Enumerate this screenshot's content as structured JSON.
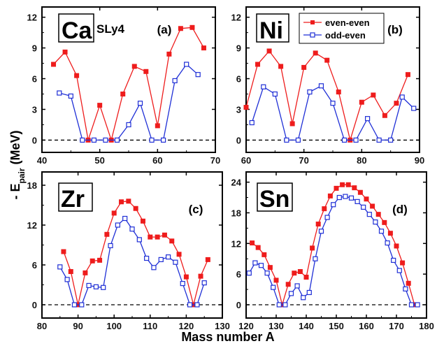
{
  "figure": {
    "xlabel": "Mass number A",
    "ylabel_main": "- E",
    "ylabel_sub": "pair",
    "ylabel_unit": " (MeV)",
    "legend": [
      "even-even",
      "odd-even"
    ],
    "colors": {
      "even_even": "#ee1c1c",
      "odd_even": "#1f2fd6",
      "zero_line": "#000000"
    }
  },
  "chart_data": [
    {
      "type": "line",
      "element": "Ca",
      "panel_label": "(a)",
      "annotation": "SLy4",
      "xlim": [
        40,
        70
      ],
      "ylim": [
        -1.2,
        13
      ],
      "xticks": [
        40,
        50,
        60,
        70
      ],
      "yticks": [
        0,
        3,
        6,
        9,
        12
      ],
      "series": [
        {
          "name": "even-even",
          "x": [
            42,
            44,
            46,
            48,
            50,
            52,
            54,
            56,
            58,
            60,
            62,
            64,
            66,
            68
          ],
          "y": [
            7.4,
            8.6,
            6.3,
            0,
            3.4,
            0,
            4.5,
            7.2,
            6.7,
            1.4,
            8.4,
            10.9,
            11.0,
            9.0
          ]
        },
        {
          "name": "odd-even",
          "x": [
            43,
            45,
            47,
            49,
            51,
            53,
            55,
            57,
            59,
            61,
            63,
            65,
            67
          ],
          "y": [
            4.6,
            4.3,
            0,
            0,
            0,
            0,
            1.5,
            3.6,
            0,
            0,
            5.8,
            7.4,
            6.4
          ]
        }
      ]
    },
    {
      "type": "line",
      "element": "Ni",
      "panel_label": "(b)",
      "xlim": [
        60,
        90
      ],
      "ylim": [
        -1.2,
        13
      ],
      "xticks": [
        60,
        70,
        80,
        90
      ],
      "yticks": [
        0,
        3,
        6,
        9,
        12
      ],
      "series": [
        {
          "name": "even-even",
          "x": [
            60,
            62,
            64,
            66,
            68,
            70,
            72,
            74,
            76,
            78,
            80,
            82,
            84,
            86,
            88
          ],
          "y": [
            3.2,
            7.4,
            8.7,
            7.2,
            1.6,
            7.1,
            8.5,
            7.8,
            4.7,
            0,
            3.7,
            4.4,
            2.4,
            3.6,
            6.4
          ]
        },
        {
          "name": "odd-even",
          "x": [
            61,
            63,
            65,
            67,
            69,
            71,
            73,
            75,
            77,
            79,
            81,
            83,
            85,
            87,
            89
          ],
          "y": [
            1.7,
            5.2,
            4.5,
            0,
            0,
            4.7,
            5.3,
            3.6,
            0,
            0,
            2.1,
            0,
            0,
            4.2,
            3.1
          ]
        }
      ]
    },
    {
      "type": "line",
      "element": "Zr",
      "panel_label": "(c)",
      "xlim": [
        80,
        130
      ],
      "ylim": [
        -2,
        20
      ],
      "xticks": [
        80,
        90,
        100,
        110,
        120,
        130
      ],
      "yticks": [
        0,
        6,
        12,
        18
      ],
      "series": [
        {
          "name": "even-even",
          "x": [
            86,
            88,
            90,
            92,
            94,
            96,
            98,
            100,
            102,
            104,
            106,
            108,
            110,
            112,
            114,
            116,
            118,
            120,
            122,
            124,
            126
          ],
          "y": [
            8.0,
            5.0,
            0,
            4.8,
            6.6,
            6.7,
            10.6,
            13.8,
            15.5,
            15.6,
            14.5,
            12.6,
            10.2,
            10.2,
            10.5,
            9.6,
            7.6,
            4.2,
            0,
            4.3,
            6.8
          ]
        },
        {
          "name": "odd-even",
          "x": [
            85,
            87,
            89,
            91,
            93,
            95,
            97,
            99,
            101,
            103,
            105,
            107,
            109,
            111,
            113,
            115,
            117,
            119,
            121,
            123,
            125
          ],
          "y": [
            5.7,
            3.8,
            0,
            0,
            2.9,
            2.7,
            2.6,
            8.9,
            12.0,
            13.0,
            11.4,
            9.8,
            7.0,
            5.6,
            6.8,
            7.2,
            6.4,
            3.2,
            0,
            0,
            3.3
          ]
        }
      ]
    },
    {
      "type": "line",
      "element": "Sn",
      "panel_label": "(d)",
      "xlim": [
        120,
        180
      ],
      "ylim": [
        -2.6,
        26
      ],
      "xticks": [
        120,
        130,
        140,
        150,
        160,
        170,
        180
      ],
      "yticks": [
        0,
        6,
        12,
        18,
        24
      ],
      "series": [
        {
          "name": "even-even",
          "x": [
            122,
            124,
            126,
            128,
            130,
            132,
            134,
            136,
            138,
            140,
            142,
            144,
            146,
            148,
            150,
            152,
            154,
            156,
            158,
            160,
            162,
            164,
            166,
            168,
            170,
            172,
            174,
            176
          ],
          "y": [
            12.1,
            11.2,
            9.8,
            7.3,
            4.8,
            0,
            4.0,
            6.2,
            6.5,
            5.4,
            11.1,
            15.8,
            18.8,
            21.3,
            22.8,
            23.5,
            23.5,
            22.9,
            22.0,
            20.7,
            19.3,
            17.7,
            16.1,
            14.0,
            11.5,
            8.2,
            4.2,
            0
          ]
        },
        {
          "name": "odd-even",
          "x": [
            121,
            123,
            125,
            127,
            129,
            131,
            133,
            135,
            137,
            139,
            141,
            143,
            145,
            147,
            149,
            151,
            153,
            155,
            157,
            159,
            161,
            163,
            165,
            167,
            169,
            171,
            173,
            175,
            177
          ],
          "y": [
            6.2,
            8.2,
            7.7,
            6.2,
            3.4,
            0,
            0,
            2.2,
            3.7,
            1.4,
            2.4,
            9.0,
            14.4,
            17.1,
            19.6,
            21.0,
            21.2,
            20.9,
            20.2,
            19.1,
            17.7,
            16.2,
            14.4,
            12.1,
            8.7,
            6.7,
            3.1,
            0,
            0
          ]
        }
      ]
    }
  ]
}
